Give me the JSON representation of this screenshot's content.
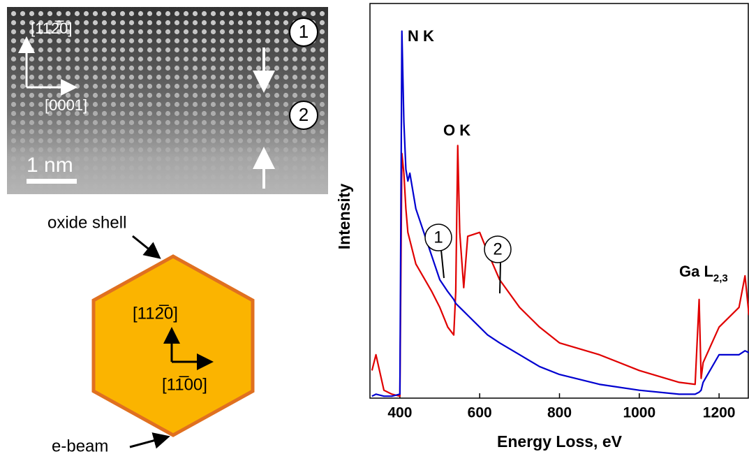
{
  "chart_data": {
    "type": "line",
    "x_label": "Energy Loss, eV",
    "y_label": "Intensity",
    "xlim": [
      325,
      1275
    ],
    "ylim": [
      0,
      100
    ],
    "xticks": [
      400,
      600,
      800,
      1000,
      1200
    ],
    "x": [
      330,
      340,
      360,
      380,
      400,
      405,
      410,
      415,
      420,
      425,
      440,
      480,
      500,
      520,
      535,
      540,
      545,
      550,
      560,
      570,
      600,
      620,
      650,
      700,
      750,
      800,
      900,
      1000,
      1100,
      1140,
      1150,
      1155,
      1160,
      1200,
      1250,
      1265,
      1275
    ],
    "series": [
      {
        "name": "1",
        "color": "#0000d0",
        "values": [
          0.5,
          1,
          0.5,
          0.5,
          1,
          93,
          70,
          58,
          55,
          57,
          48,
          36,
          30,
          27,
          25,
          24,
          23.5,
          23,
          22,
          21,
          18,
          16,
          14,
          11,
          8,
          6,
          3.5,
          2,
          1,
          1,
          1.5,
          2,
          4,
          11,
          11,
          12,
          11.5
        ]
      },
      {
        "name": "2",
        "color": "#e00000",
        "values": [
          7,
          11,
          2,
          1,
          0.5,
          62,
          57,
          48,
          42,
          40,
          34,
          27,
          23,
          18,
          16,
          27,
          64,
          42,
          28,
          41,
          42,
          37,
          30,
          23,
          18,
          14,
          11,
          7,
          4,
          3.5,
          25,
          5,
          9,
          18,
          23,
          31,
          21
        ]
      }
    ],
    "annotations": [
      {
        "text": "N K"
      },
      {
        "text": "O K"
      },
      {
        "text": "Ga L",
        "sub": "2,3"
      }
    ]
  },
  "micrograph": {
    "direction_a": "[112̅0]",
    "direction_b": "[0001]",
    "scale_bar": "1 nm",
    "region_1": "1",
    "region_2": "2"
  },
  "diagram": {
    "shell_label": "oxide shell",
    "beam_label": "e-beam",
    "direction_a": "[112̅0]",
    "direction_b": "[11̅00]"
  }
}
